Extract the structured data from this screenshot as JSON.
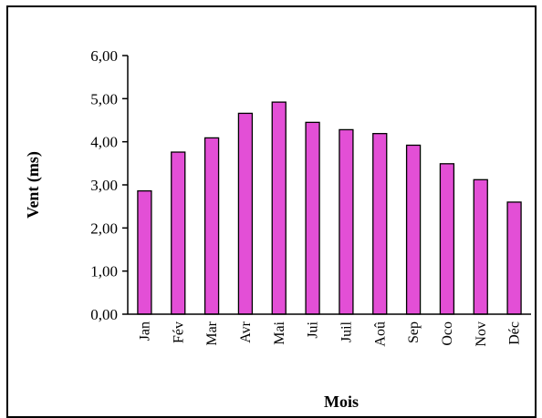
{
  "chart_data": {
    "type": "bar",
    "categories": [
      "Jan",
      "Fév",
      "Mar",
      "Avr",
      "Mai",
      "Jui",
      "Juil",
      "Aoû",
      "Sep",
      "Oco",
      "Nov",
      "Déc"
    ],
    "values": [
      2.86,
      3.76,
      4.09,
      4.66,
      4.92,
      4.45,
      4.28,
      4.19,
      3.92,
      3.49,
      3.12,
      2.6
    ],
    "ylabel": "Vent (ms)",
    "xlabel": "Mois",
    "ylim": [
      0,
      6
    ],
    "yticks": [
      "0,00",
      "1,00",
      "2,00",
      "3,00",
      "4,00",
      "5,00",
      "6,00"
    ],
    "bar_color": "#e34fd6",
    "grid": false
  }
}
